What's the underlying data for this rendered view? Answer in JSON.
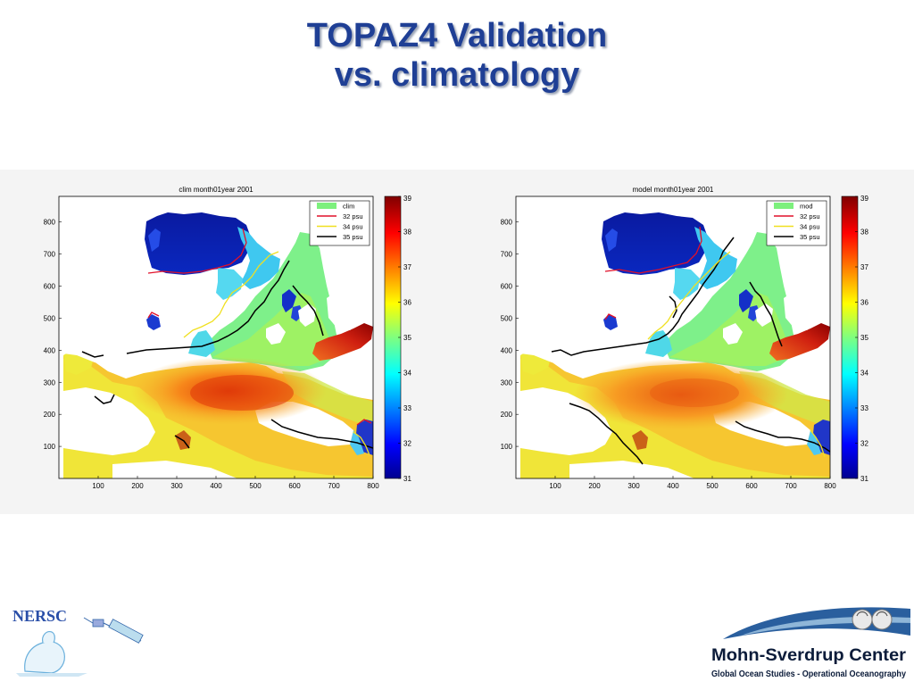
{
  "slide": {
    "title_line1": "TOPAZ4 Validation",
    "title_line2": "vs. climatology"
  },
  "logos": {
    "left": "NERSC",
    "right_title": "Mohn-Sverdrup Center",
    "right_subtitle": "Global Ocean Studies - Operational Oceanography"
  },
  "chart_data": [
    {
      "type": "heatmap",
      "title": "clim month01year 2001",
      "x_ticks": [
        100,
        200,
        300,
        400,
        500,
        600,
        700,
        800
      ],
      "y_ticks": [
        800,
        700,
        600,
        500,
        400,
        300,
        200,
        100
      ],
      "xlim": [
        0,
        800
      ],
      "ylim": [
        0,
        880
      ],
      "legend": [
        "clim",
        "32 psu",
        "34 psu",
        "35 psu"
      ],
      "legend_colors": [
        "#7df07d",
        "#e0102a",
        "#f0e020",
        "#000000"
      ],
      "legend_position": "top-right",
      "colorbar": {
        "min": 31,
        "max": 39,
        "ticks": [
          "39",
          "38",
          "37",
          "36",
          "35",
          "34",
          "33",
          "32",
          "31"
        ]
      }
    },
    {
      "type": "heatmap",
      "title": "model month01year 2001",
      "x_ticks": [
        100,
        200,
        300,
        400,
        500,
        600,
        700,
        800
      ],
      "y_ticks": [
        800,
        700,
        600,
        500,
        400,
        300,
        200,
        100
      ],
      "xlim": [
        0,
        800
      ],
      "ylim": [
        0,
        880
      ],
      "legend": [
        "mod",
        "32 psu",
        "34 psu",
        "35 psu"
      ],
      "legend_colors": [
        "#7df07d",
        "#e0102a",
        "#f0e020",
        "#000000"
      ],
      "legend_position": "top-right",
      "colorbar": {
        "min": 31,
        "max": 39,
        "ticks": [
          "39",
          "38",
          "37",
          "36",
          "35",
          "34",
          "33",
          "32",
          "31"
        ]
      }
    }
  ]
}
